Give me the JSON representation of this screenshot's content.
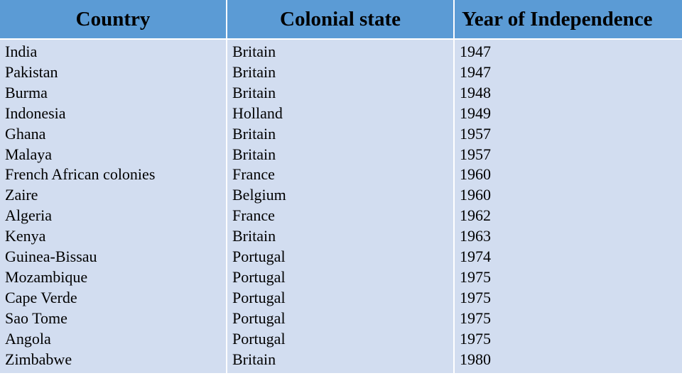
{
  "table": {
    "headers": [
      "Country",
      "Colonial state",
      "Year of Independence"
    ],
    "rows": [
      [
        "India",
        "Britain",
        "1947"
      ],
      [
        "Pakistan",
        "Britain",
        "1947"
      ],
      [
        "Burma",
        "Britain",
        "1948"
      ],
      [
        "Indonesia",
        "Holland",
        "1949"
      ],
      [
        "Ghana",
        "Britain",
        "1957"
      ],
      [
        "Malaya",
        "Britain",
        "1957"
      ],
      [
        "French African colonies",
        "France",
        "1960"
      ],
      [
        "Zaire",
        "Belgium",
        "1960"
      ],
      [
        "Algeria",
        "France",
        "1962"
      ],
      [
        "Kenya",
        "Britain",
        "1963"
      ],
      [
        "Guinea-Bissau",
        "Portugal",
        "1974"
      ],
      [
        "Mozambique",
        "Portugal",
        "1975"
      ],
      [
        "Cape Verde",
        "Portugal",
        "1975"
      ],
      [
        "Sao Tome",
        "Portugal",
        "1975"
      ],
      [
        "Angola",
        "Portugal",
        "1975"
      ],
      [
        "Zimbabwe",
        "Britain",
        "1980"
      ]
    ]
  },
  "colors": {
    "header_fill": "#5b9bd5",
    "body_fill": "#d2ddf0"
  }
}
